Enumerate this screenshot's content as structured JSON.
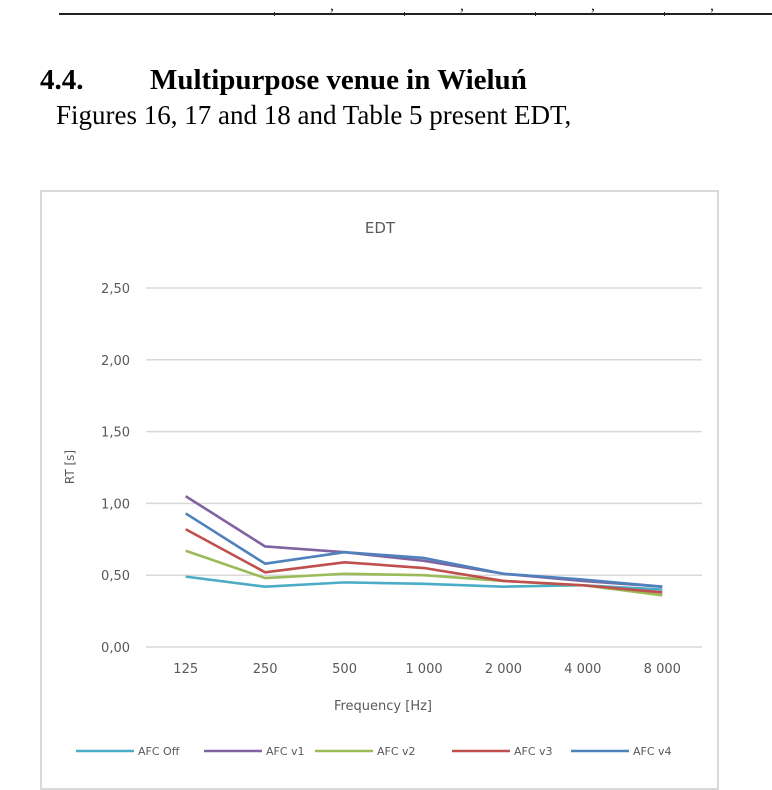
{
  "document": {
    "top_fragments": [
      ",",
      ",",
      ",",
      ","
    ],
    "section_number": "4.4.",
    "section_title": "Multipurpose venue in Wieluń",
    "paragraph": "Figures 16, 17 and 18 and Table 5 present EDT,"
  },
  "chart_data": {
    "type": "line",
    "title": "EDT",
    "xlabel": "Frequency [Hz]",
    "ylabel": "RT [s]",
    "categories": [
      "125",
      "250",
      "500",
      "1 000",
      "2 000",
      "4 000",
      "8 000"
    ],
    "ylim": [
      0,
      2.5
    ],
    "yticks": [
      0,
      0.5,
      1.0,
      1.5,
      2.0,
      2.5
    ],
    "ytick_labels": [
      "0,00",
      "0,50",
      "1,00",
      "1,50",
      "2,00",
      "2,50"
    ],
    "grid": true,
    "legend_position": "bottom",
    "series": [
      {
        "name": "AFC Off",
        "color": "#4bacc6",
        "values": [
          0.49,
          0.42,
          0.45,
          0.44,
          0.42,
          0.43,
          0.4
        ]
      },
      {
        "name": "AFC v1",
        "color": "#8064a2",
        "values": [
          1.05,
          0.7,
          0.66,
          0.6,
          0.51,
          0.46,
          0.42
        ]
      },
      {
        "name": "AFC v2",
        "color": "#9bbb59",
        "values": [
          0.67,
          0.48,
          0.51,
          0.5,
          0.46,
          0.43,
          0.36
        ]
      },
      {
        "name": "AFC v3",
        "color": "#c0504d",
        "values": [
          0.82,
          0.52,
          0.59,
          0.55,
          0.46,
          0.43,
          0.38
        ]
      },
      {
        "name": "AFC v4",
        "color": "#4f81bd",
        "values": [
          0.93,
          0.58,
          0.66,
          0.62,
          0.51,
          0.47,
          0.42
        ]
      }
    ]
  }
}
